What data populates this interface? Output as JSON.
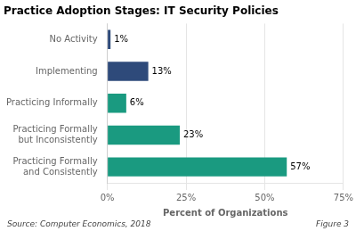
{
  "chart_data": {
    "type": "bar",
    "orientation": "horizontal",
    "title": "Practice Adoption Stages: IT Security Policies",
    "categories": [
      "No Activity",
      "Implementing",
      "Practicing Informally",
      "Practicing Formally\nbut Inconsistently",
      "Practicing Formally\nand Consistently"
    ],
    "values": [
      1,
      13,
      6,
      23,
      57
    ],
    "value_labels": [
      "1%",
      "13%",
      "6%",
      "23%",
      "57%"
    ],
    "data_labels": true,
    "colors": [
      "#2E4A7A",
      "#2E4A7A",
      "#1A9A80",
      "#1A9A80",
      "#1A9A80"
    ],
    "xlabel": "Percent of Organizations",
    "xlim": [
      0,
      75
    ],
    "xticks": [
      {
        "value": 0,
        "label": "0%"
      },
      {
        "value": 25,
        "label": "25%"
      },
      {
        "value": 50,
        "label": "50%"
      },
      {
        "value": 75,
        "label": "75%"
      }
    ],
    "grid": true,
    "annotations": [
      "Source: Computer Economics, 2018",
      "Figure 3"
    ]
  }
}
